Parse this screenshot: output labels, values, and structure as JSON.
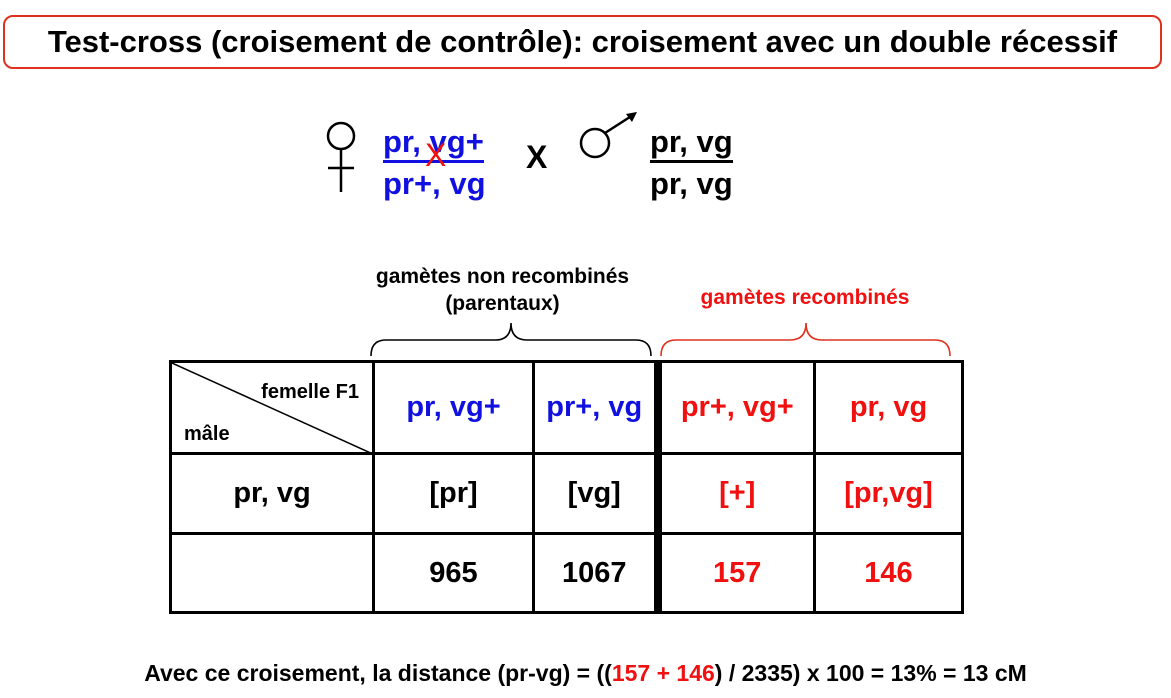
{
  "title": "Test-cross (croisement de contrôle): croisement avec un double récessif",
  "cross": {
    "female_symbol_icon": "female-symbol-icon",
    "female_top": "pr, vg+",
    "female_bottom": "pr+, vg",
    "crossover_mark": "X",
    "cross_sign": "X",
    "male_symbol_icon": "male-symbol-icon",
    "male_top": "pr, vg",
    "male_bottom": "pr, vg"
  },
  "groups": {
    "parental_line1": "gamètes non recombinés",
    "parental_line2": "(parentaux)",
    "recombinant": "gamètes recombinés"
  },
  "table": {
    "corner_female": "femelle F1",
    "corner_male": "mâle",
    "headers": [
      "pr, vg+",
      "pr+, vg",
      "pr+, vg+",
      "pr, vg"
    ],
    "row_label": "pr, vg",
    "phenotypes": [
      "[pr]",
      "[vg]",
      "[+]",
      "[pr,vg]"
    ],
    "counts": [
      "965",
      "1067",
      "157",
      "146"
    ]
  },
  "formula": {
    "prefix": "Avec ce croisement, la distance (pr-vg) = ((",
    "a": "157",
    "plus": " + ",
    "b": "146",
    "suffix": ") / 2335) x 100 = 13% = 13 cM"
  },
  "colors": {
    "parental": "#1010e0",
    "recombinant": "#f01010",
    "border_accent": "#e0301e"
  }
}
